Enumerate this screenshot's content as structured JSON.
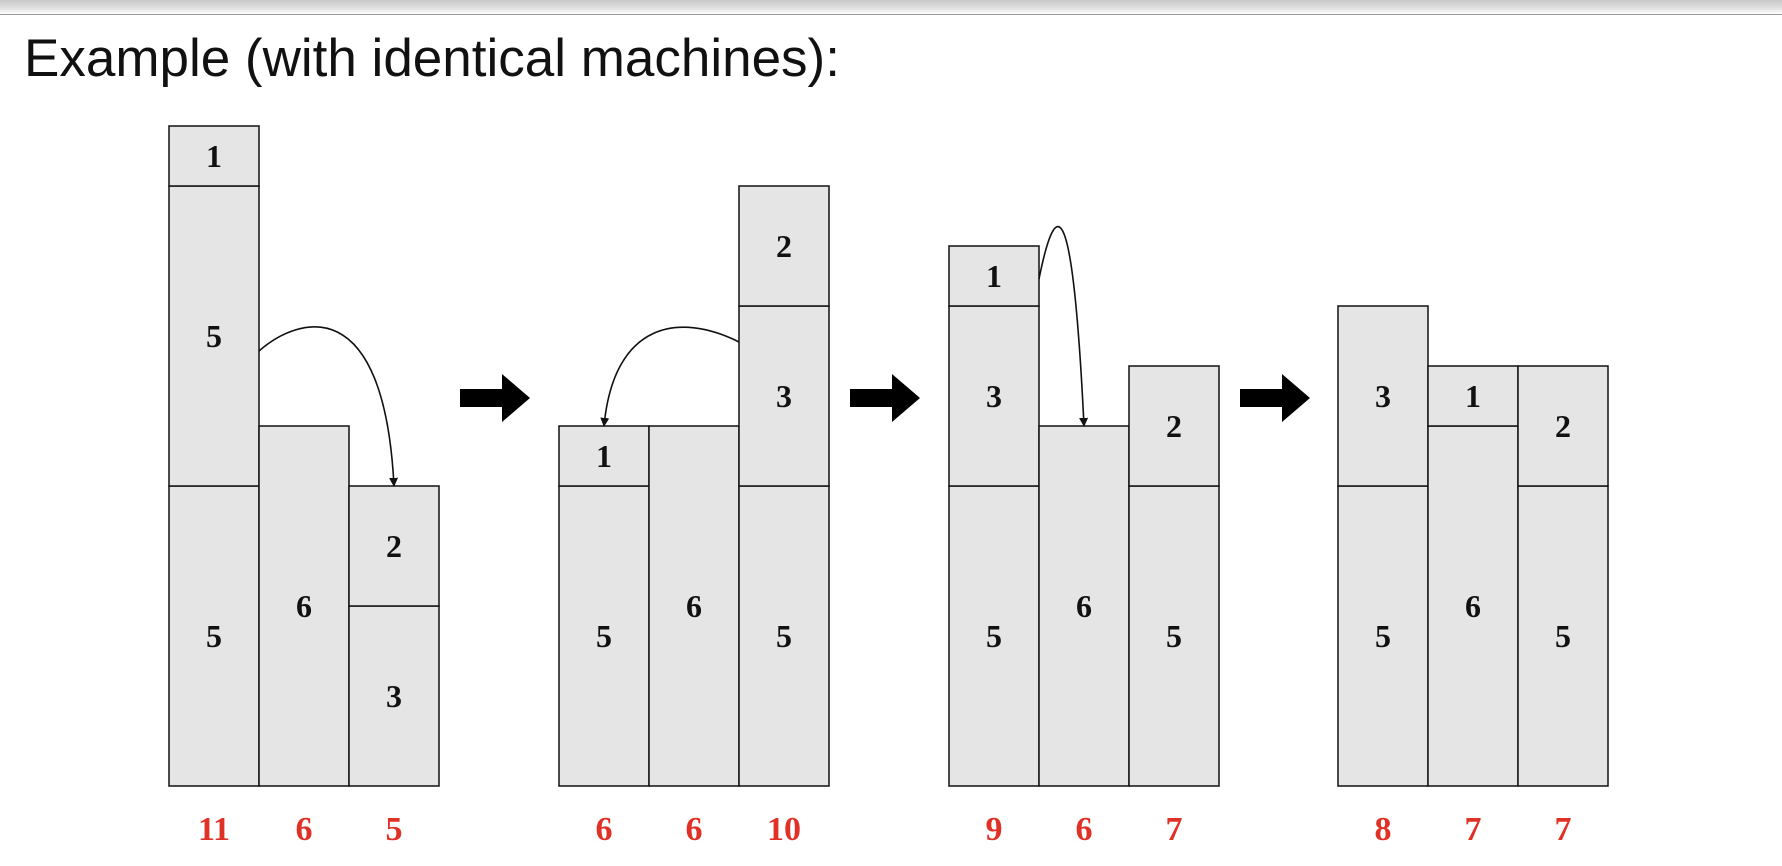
{
  "heading": "Example (with identical machines):",
  "colors": {
    "job_fill": "#e5e5e5",
    "outline": "#111111",
    "load": "#e03127",
    "arrow": "#000000"
  },
  "steps": [
    {
      "machines": [
        {
          "jobs": [
            "5",
            "5",
            "1"
          ],
          "sizes": [
            5,
            5,
            1
          ],
          "load": "11"
        },
        {
          "jobs": [
            "6"
          ],
          "sizes": [
            6
          ],
          "load": "6"
        },
        {
          "jobs": [
            "3",
            "2"
          ],
          "sizes": [
            3,
            2
          ],
          "load": "5"
        }
      ],
      "move": {
        "from_machine": 0,
        "to_machine": 2,
        "job": "5"
      }
    },
    {
      "machines": [
        {
          "jobs": [
            "5",
            "1"
          ],
          "sizes": [
            5,
            1
          ],
          "load": "6"
        },
        {
          "jobs": [
            "6"
          ],
          "sizes": [
            6
          ],
          "load": "6"
        },
        {
          "jobs": [
            "5",
            "3",
            "2"
          ],
          "sizes": [
            5,
            3,
            2
          ],
          "load": "10"
        }
      ],
      "move": {
        "from_machine": 2,
        "to_machine": 0,
        "job": "3"
      }
    },
    {
      "machines": [
        {
          "jobs": [
            "5",
            "3",
            "1"
          ],
          "sizes": [
            5,
            3,
            1
          ],
          "load": "9"
        },
        {
          "jobs": [
            "6"
          ],
          "sizes": [
            6
          ],
          "load": "6"
        },
        {
          "jobs": [
            "5",
            "2"
          ],
          "sizes": [
            5,
            2
          ],
          "load": "7"
        }
      ],
      "move": {
        "from_machine": 0,
        "to_machine": 1,
        "job": "1"
      }
    },
    {
      "machines": [
        {
          "jobs": [
            "5",
            "3"
          ],
          "sizes": [
            5,
            3
          ],
          "load": "8"
        },
        {
          "jobs": [
            "6",
            "1"
          ],
          "sizes": [
            6,
            1
          ],
          "load": "7"
        },
        {
          "jobs": [
            "5",
            "2"
          ],
          "sizes": [
            5,
            2
          ],
          "load": "7"
        }
      ],
      "move": null
    }
  ]
}
